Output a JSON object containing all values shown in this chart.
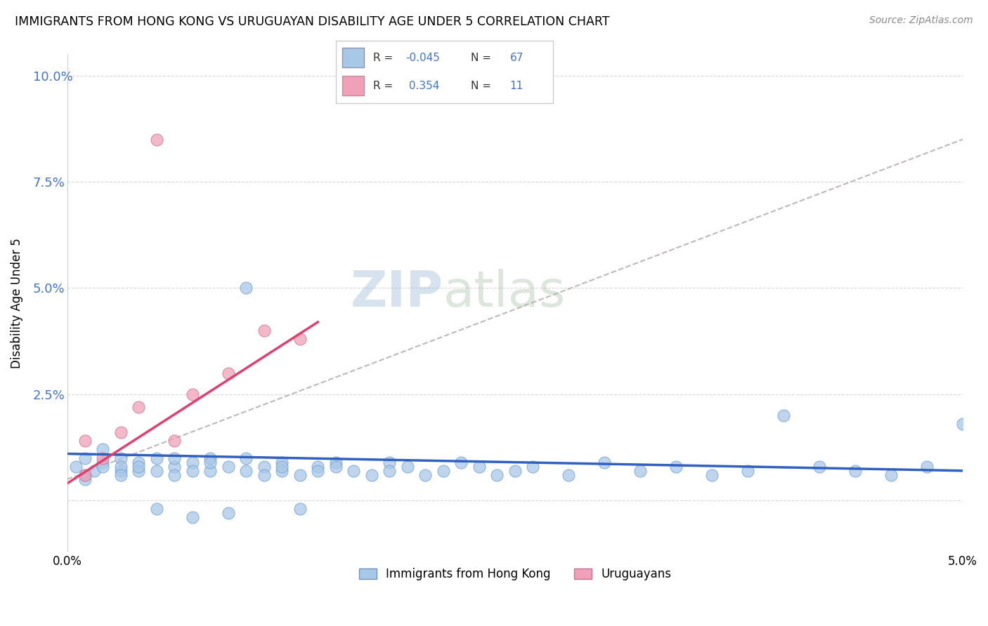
{
  "title": "IMMIGRANTS FROM HONG KONG VS URUGUAYAN DISABILITY AGE UNDER 5 CORRELATION CHART",
  "source": "Source: ZipAtlas.com",
  "ylabel": "Disability Age Under 5",
  "legend_label1": "Immigrants from Hong Kong",
  "legend_label2": "Uruguayans",
  "r1": -0.045,
  "n1": 67,
  "r2": 0.354,
  "n2": 11,
  "color1": "#a8c8e8",
  "color2": "#f0a0b8",
  "line_color1": "#3060c0",
  "line_color2": "#e04070",
  "line_color_blue": "#4472c4",
  "xlim": [
    0.0,
    0.05
  ],
  "ylim": [
    -0.012,
    0.105
  ],
  "yticks": [
    0.0,
    0.025,
    0.05,
    0.075,
    0.1
  ],
  "ytick_labels": [
    "",
    "2.5%",
    "5.0%",
    "7.5%",
    "10.0%"
  ],
  "background_color": "#ffffff",
  "grid_color": "#d8d8d8",
  "watermark_color": "#c8d8e8",
  "scatter1_x": [
    0.0005,
    0.001,
    0.001,
    0.001,
    0.0015,
    0.002,
    0.002,
    0.002,
    0.003,
    0.003,
    0.003,
    0.003,
    0.004,
    0.004,
    0.004,
    0.005,
    0.005,
    0.005,
    0.006,
    0.006,
    0.006,
    0.007,
    0.007,
    0.007,
    0.008,
    0.008,
    0.008,
    0.009,
    0.009,
    0.01,
    0.01,
    0.01,
    0.011,
    0.011,
    0.012,
    0.012,
    0.012,
    0.013,
    0.013,
    0.014,
    0.014,
    0.015,
    0.015,
    0.016,
    0.017,
    0.018,
    0.018,
    0.019,
    0.02,
    0.021,
    0.022,
    0.023,
    0.024,
    0.025,
    0.026,
    0.028,
    0.03,
    0.032,
    0.034,
    0.036,
    0.038,
    0.04,
    0.042,
    0.044,
    0.046,
    0.048,
    0.05
  ],
  "scatter1_y": [
    0.008,
    0.006,
    0.01,
    0.005,
    0.007,
    0.009,
    0.008,
    0.012,
    0.01,
    0.007,
    0.008,
    0.006,
    0.009,
    0.007,
    0.008,
    0.01,
    0.007,
    -0.002,
    0.008,
    0.01,
    0.006,
    0.009,
    0.007,
    -0.004,
    0.01,
    0.007,
    0.009,
    0.008,
    -0.003,
    0.01,
    0.007,
    0.05,
    0.008,
    0.006,
    0.009,
    0.007,
    0.008,
    -0.002,
    0.006,
    0.008,
    0.007,
    0.009,
    0.008,
    0.007,
    0.006,
    0.009,
    0.007,
    0.008,
    0.006,
    0.007,
    0.009,
    0.008,
    0.006,
    0.007,
    0.008,
    0.006,
    0.009,
    0.007,
    0.008,
    0.006,
    0.007,
    0.02,
    0.008,
    0.007,
    0.006,
    0.008,
    0.018
  ],
  "scatter2_x": [
    0.001,
    0.001,
    0.002,
    0.003,
    0.004,
    0.005,
    0.006,
    0.007,
    0.009,
    0.011,
    0.013
  ],
  "scatter2_y": [
    0.006,
    0.014,
    0.01,
    0.016,
    0.022,
    0.085,
    0.014,
    0.025,
    0.03,
    0.04,
    0.038
  ],
  "trendline1_x": [
    0.0,
    0.05
  ],
  "trendline1_y": [
    0.011,
    0.007
  ],
  "trendline2_x": [
    0.0,
    0.014
  ],
  "trendline2_y": [
    0.004,
    0.042
  ],
  "gray_line_x": [
    0.0,
    0.05
  ],
  "gray_line_y": [
    0.005,
    0.085
  ]
}
